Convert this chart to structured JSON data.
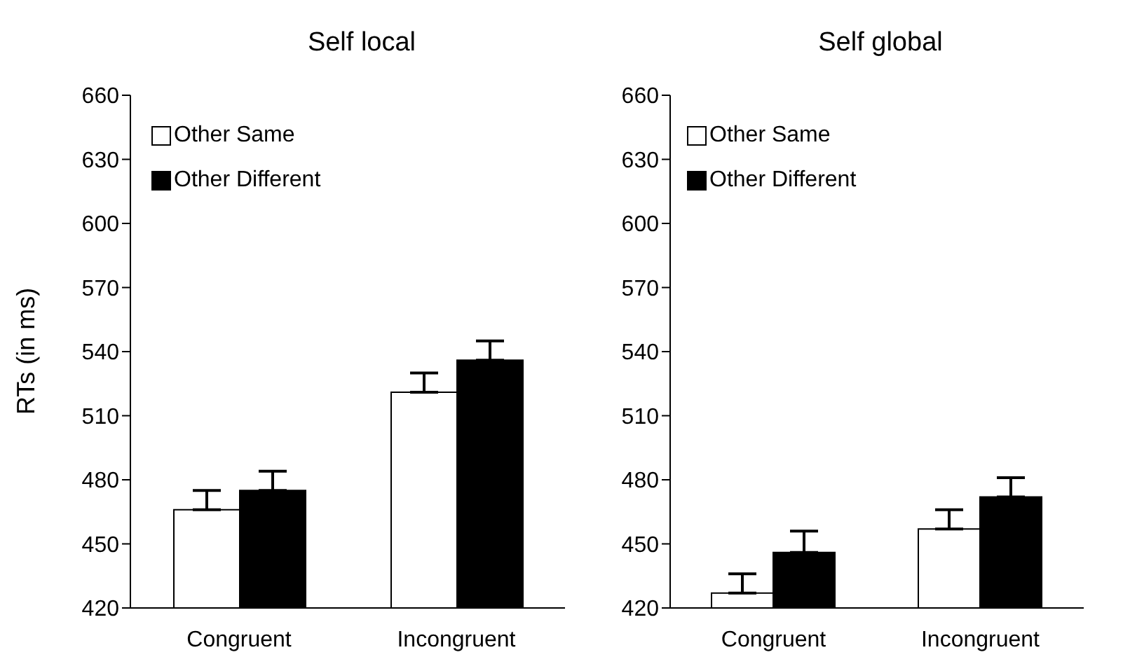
{
  "chart_data": [
    {
      "type": "bar",
      "title": "Self local",
      "ylabel": "RTs (in ms)",
      "categories": [
        "Congruent",
        "Incongruent"
      ],
      "ylim": [
        420,
        660
      ],
      "yticks": [
        420,
        450,
        480,
        510,
        540,
        570,
        600,
        630,
        660
      ],
      "legend": "top left",
      "grid": false,
      "series": [
        {
          "name": "Other Same",
          "color": "#ffffff",
          "values": [
            466,
            521
          ],
          "errors": [
            9,
            9
          ]
        },
        {
          "name": "Other Different",
          "color": "#000000",
          "values": [
            475,
            536
          ],
          "errors": [
            9,
            9
          ]
        }
      ]
    },
    {
      "type": "bar",
      "title": "Self global",
      "categories": [
        "Congruent",
        "Incongruent"
      ],
      "ylim": [
        420,
        660
      ],
      "yticks": [
        420,
        450,
        480,
        510,
        540,
        570,
        600,
        630,
        660
      ],
      "legend": "top left",
      "grid": false,
      "series": [
        {
          "name": "Other Same",
          "color": "#ffffff",
          "values": [
            427,
            457
          ],
          "errors": [
            9,
            9
          ]
        },
        {
          "name": "Other Different",
          "color": "#000000",
          "values": [
            446,
            472
          ],
          "errors": [
            10,
            9
          ]
        }
      ]
    }
  ]
}
